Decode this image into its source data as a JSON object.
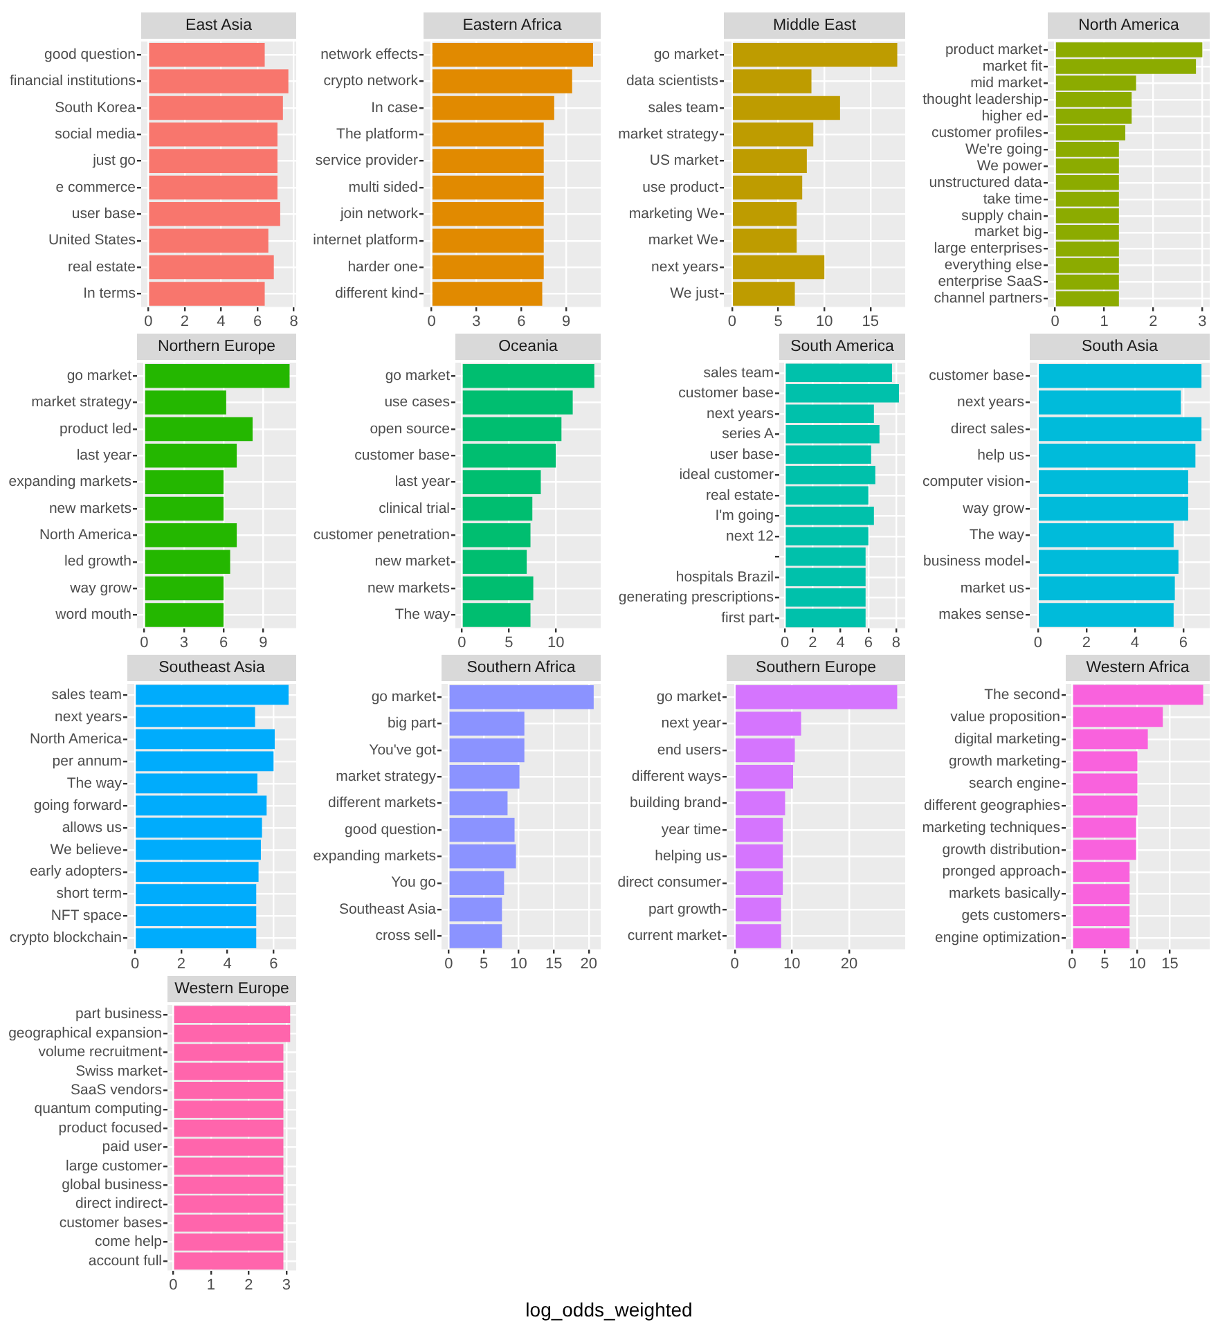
{
  "chart_data": [
    {
      "type": "bar",
      "orientation": "horizontal",
      "title": "East Asia",
      "color": "#f8766d",
      "grid": true,
      "xlim": [
        -0.39,
        8.13
      ],
      "xticks": [
        0,
        2,
        4,
        6,
        8
      ],
      "categories": [
        "good question",
        "financial institutions",
        "South Korea",
        "social media",
        "just go",
        "e commerce",
        "user base",
        "United States",
        "real estate",
        "In terms"
      ],
      "values": [
        6.4,
        7.7,
        7.4,
        7.1,
        7.1,
        7.1,
        7.25,
        6.6,
        6.9,
        6.4
      ]
    },
    {
      "type": "bar",
      "orientation": "horizontal",
      "title": "Eastern Africa",
      "color": "#e18a00",
      "grid": true,
      "xlim": [
        -0.54,
        11.31
      ],
      "xticks": [
        0,
        3,
        6,
        9
      ],
      "categories": [
        "network effects",
        "crypto network",
        "In case",
        "The platform",
        "service provider",
        "multi sided",
        "join network",
        "internet platform",
        "harder one",
        "different kind"
      ],
      "values": [
        10.8,
        9.4,
        8.2,
        7.5,
        7.5,
        7.5,
        7.5,
        7.5,
        7.5,
        7.4
      ]
    },
    {
      "type": "bar",
      "orientation": "horizontal",
      "title": "Middle East",
      "color": "#be9c00",
      "grid": true,
      "xlim": [
        -0.89,
        18.76
      ],
      "xticks": [
        0,
        5,
        10,
        15
      ],
      "categories": [
        "go market",
        "data scientists",
        "sales team",
        "market strategy",
        "US market",
        "use product",
        "marketing We",
        "market We",
        "next years",
        "We just"
      ],
      "values": [
        17.9,
        8.6,
        11.7,
        8.8,
        8.1,
        7.6,
        7,
        7,
        10,
        6.8
      ]
    },
    {
      "type": "bar",
      "orientation": "horizontal",
      "title": "North America",
      "color": "#8cab00",
      "grid": true,
      "xlim": [
        -0.15,
        3.15
      ],
      "xticks": [
        0,
        1,
        2,
        3
      ],
      "categories": [
        "product market",
        "market fit",
        "mid market",
        "thought leadership",
        "higher ed",
        "customer profiles",
        "We're going",
        "We power",
        "unstructured data",
        "take time",
        "supply chain",
        "market big",
        "large enterprises",
        "everything else",
        "enterprise SaaS",
        "channel partners"
      ],
      "values": [
        3.0,
        2.87,
        1.65,
        1.56,
        1.56,
        1.43,
        1.3,
        1.3,
        1.3,
        1.3,
        1.3,
        1.3,
        1.3,
        1.3,
        1.3,
        1.3
      ]
    },
    {
      "type": "bar",
      "orientation": "horizontal",
      "title": "Northern Europe",
      "color": "#24b700",
      "grid": true,
      "xlim": [
        -0.55,
        11.5
      ],
      "xticks": [
        0,
        3,
        6,
        9
      ],
      "categories": [
        "go market",
        "market strategy",
        "product led",
        "last year",
        "expanding markets",
        "new markets",
        "North America",
        "led growth",
        "way grow",
        "word mouth"
      ],
      "values": [
        11,
        6.2,
        8.2,
        7,
        6,
        6,
        7,
        6.5,
        6,
        6
      ]
    },
    {
      "type": "bar",
      "orientation": "horizontal",
      "title": "Oceania",
      "color": "#00be70",
      "grid": true,
      "xlim": [
        -0.7,
        14.78
      ],
      "xticks": [
        0,
        5,
        10
      ],
      "categories": [
        "go market",
        "use cases",
        "open source",
        "customer base",
        "last year",
        "clinical trial",
        "customer penetration",
        "new market",
        "new markets",
        "The way"
      ],
      "values": [
        14.1,
        11.8,
        10.6,
        10,
        8.4,
        7.5,
        7.3,
        6.9,
        7.6,
        7.3
      ]
    },
    {
      "type": "bar",
      "orientation": "horizontal",
      "title": "South America",
      "color": "#00c1ab",
      "grid": true,
      "xlim": [
        -0.41,
        8.65
      ],
      "xticks": [
        0,
        2,
        4,
        6,
        8
      ],
      "categories": [
        "sales team",
        "customer base",
        "next years",
        "series A",
        "user base",
        "ideal customer",
        "real estate",
        "I'm going",
        "next 12",
        null,
        "hospitals Brazil",
        "generating prescriptions",
        "first part"
      ],
      "values": [
        7.7,
        8.2,
        6.4,
        6.8,
        6.2,
        6.5,
        6,
        6.4,
        6,
        5.8,
        5.8,
        5.8,
        5.8
      ]
    },
    {
      "type": "bar",
      "orientation": "horizontal",
      "title": "South Asia",
      "color": "#00bbda",
      "grid": true,
      "xlim": [
        -0.34,
        7.09
      ],
      "xticks": [
        0,
        2,
        4,
        6
      ],
      "categories": [
        "customer base",
        "next years",
        "direct sales",
        "help us",
        "computer vision",
        "way grow",
        "The way",
        "business model",
        "market us",
        "makes sense"
      ],
      "values": [
        6.75,
        5.9,
        6.75,
        6.5,
        6.2,
        6.2,
        5.6,
        5.8,
        5.65,
        5.6
      ]
    },
    {
      "type": "bar",
      "orientation": "horizontal",
      "title": "Southeast Asia",
      "color": "#00acfc",
      "grid": true,
      "xlim": [
        -0.33,
        6.98
      ],
      "xticks": [
        0,
        2,
        4,
        6
      ],
      "categories": [
        "sales team",
        "next years",
        "North America",
        "per annum",
        "The way",
        "going forward",
        "allows us",
        "We believe",
        "early adopters",
        "short term",
        "NFT space",
        "crypto blockchain"
      ],
      "values": [
        6.65,
        5.2,
        6.05,
        6,
        5.3,
        5.7,
        5.5,
        5.45,
        5.35,
        5.25,
        5.25,
        5.25
      ]
    },
    {
      "type": "bar",
      "orientation": "horizontal",
      "title": "Southern Africa",
      "color": "#8b93ff",
      "grid": true,
      "xlim": [
        -1.03,
        21.7
      ],
      "xticks": [
        0,
        5,
        10,
        15,
        20
      ],
      "categories": [
        "go market",
        "big part",
        "You've got",
        "market strategy",
        "different markets",
        "good question",
        "expanding markets",
        "You go",
        "Southeast Asia",
        "cross sell"
      ],
      "values": [
        20.7,
        10.8,
        10.8,
        10.1,
        8.4,
        9.4,
        9.6,
        7.9,
        7.6,
        7.6
      ]
    },
    {
      "type": "bar",
      "orientation": "horizontal",
      "title": "Southern Europe",
      "color": "#d575fe",
      "grid": true,
      "xlim": [
        -1.42,
        29.8
      ],
      "xticks": [
        0,
        10,
        20
      ],
      "categories": [
        "go market",
        "next year",
        "end users",
        "different ways",
        "building brand",
        "year time",
        "helping us",
        "direct consumer",
        "part growth",
        "current market"
      ],
      "values": [
        28.4,
        11.6,
        10.5,
        10.2,
        8.8,
        8.4,
        8.4,
        8.4,
        8.1,
        8.1
      ]
    },
    {
      "type": "bar",
      "orientation": "horizontal",
      "title": "Western Africa",
      "color": "#f962dd",
      "grid": true,
      "xlim": [
        -1.0,
        21.1
      ],
      "xticks": [
        0,
        5,
        10,
        15
      ],
      "categories": [
        "The second",
        "value proposition",
        "digital marketing",
        "growth marketing",
        "search engine",
        "different geographies",
        "marketing techniques",
        "growth distribution",
        "pronged approach",
        "markets basically",
        "gets customers",
        "engine optimization"
      ],
      "values": [
        20.1,
        13.9,
        11.6,
        10,
        10,
        10,
        9.8,
        9.8,
        8.8,
        8.8,
        8.8,
        8.8
      ]
    },
    {
      "type": "bar",
      "orientation": "horizontal",
      "title": "Western Europe",
      "annotations": [
        "log_odds_weighted"
      ],
      "color": "#ff65ac",
      "grid": true,
      "xlim": [
        -0.155,
        3.26
      ],
      "xticks": [
        0,
        1,
        2,
        3
      ],
      "categories": [
        "part business",
        "geographical expansion",
        "volume recruitment",
        "Swiss market",
        "SaaS vendors",
        "quantum computing",
        "product focused",
        "paid user",
        "large customer",
        "global business",
        "direct indirect",
        "customer bases",
        "come help",
        "account full"
      ],
      "values": [
        3.1,
        3.1,
        2.92,
        2.92,
        2.92,
        2.92,
        2.92,
        2.92,
        2.92,
        2.92,
        2.92,
        2.92,
        2.92,
        2.92
      ]
    }
  ]
}
